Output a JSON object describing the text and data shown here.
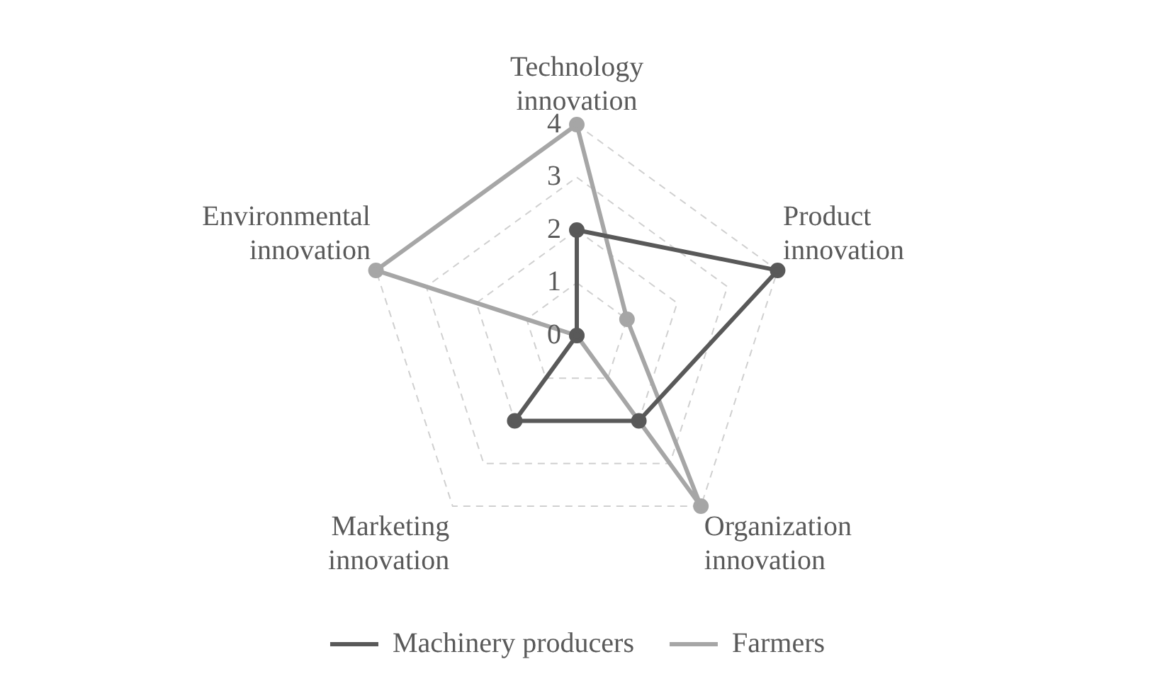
{
  "chart_data": {
    "type": "radar",
    "categories": [
      "Technology\ninnovation",
      "Product\ninnovation",
      "Organization\ninnovation",
      "Marketing\ninnovation",
      "Environmental\ninnovation"
    ],
    "series": [
      {
        "name": "Machinery producers",
        "color": "#595959",
        "values": [
          2,
          4,
          2,
          2,
          0
        ]
      },
      {
        "name": "Farmers",
        "color": "#a6a6a6",
        "values": [
          4,
          1,
          4,
          0,
          4
        ]
      }
    ],
    "ylim": [
      0,
      4
    ],
    "yticks": [
      0,
      1,
      2,
      3,
      4
    ],
    "grid": true,
    "legend": "bottom",
    "marker": "circle",
    "line_style": "solid"
  }
}
